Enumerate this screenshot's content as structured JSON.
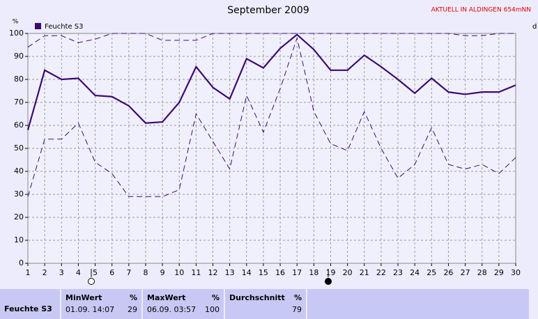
{
  "chart_data": {
    "type": "line",
    "title": "September 2009",
    "notice": "AKTUELL IN ALDINGEN 654mNN",
    "y_unit": "%",
    "right_label": "d",
    "categories": [
      "1",
      "2",
      "3",
      "4",
      "5",
      "6",
      "7",
      "8",
      "9",
      "10",
      "11",
      "12",
      "13",
      "14",
      "15",
      "16",
      "17",
      "18",
      "19",
      "20",
      "21",
      "22",
      "23",
      "24",
      "25",
      "26",
      "27",
      "28",
      "29",
      "30"
    ],
    "series": [
      {
        "name": "Feuchte S3",
        "color": "#3c0a6e",
        "style": "solid",
        "values": [
          58,
          84,
          80,
          80.5,
          73,
          72.5,
          68.5,
          61,
          61.5,
          70,
          85.5,
          76.5,
          71.5,
          89,
          85,
          93.5,
          99.5,
          93,
          84,
          84,
          90.5,
          85.5,
          80,
          74,
          80.5,
          74.5,
          73.5,
          74.5,
          74.5,
          77.5
        ]
      },
      {
        "color": "#3c0a6e",
        "style": "dashed",
        "values": [
          94,
          99,
          99,
          96,
          97.5,
          100,
          100,
          100,
          97,
          97,
          97,
          100,
          100,
          100,
          100,
          100,
          100,
          100,
          100,
          100,
          100,
          100,
          100,
          100,
          100,
          100,
          99,
          99,
          100,
          100
        ]
      },
      {
        "color": "#3c0a6e",
        "style": "dashed",
        "values": [
          29,
          54,
          54,
          61,
          44,
          39,
          29,
          29,
          29,
          32,
          65,
          53,
          41,
          73,
          57,
          76,
          98,
          66,
          52,
          49,
          66,
          50,
          37,
          43,
          59,
          43,
          41,
          43,
          39,
          46
        ]
      }
    ],
    "ylim": [
      0,
      100
    ],
    "yticks": [
      0,
      10,
      20,
      30,
      40,
      50,
      60,
      70,
      80,
      90,
      100
    ],
    "grid": true
  },
  "stats": {
    "row_label": "Feuchte S3",
    "columns": [
      {
        "header": "MinWert",
        "unit": "%",
        "time": "01.09.  14:07",
        "value": 29
      },
      {
        "header": "MaxWert",
        "unit": "%",
        "time": "06.09.  03:57",
        "value": 100
      },
      {
        "header": "Durchschnitt",
        "unit": "%",
        "value": 79
      }
    ]
  }
}
